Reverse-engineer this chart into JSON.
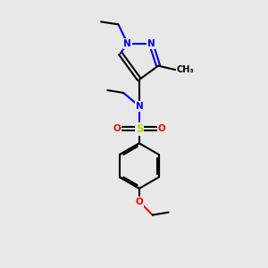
{
  "bg_color": "#e8e8e8",
  "bond_color": "#000000",
  "N_color": "#0000ff",
  "O_color": "#ff0000",
  "S_color": "#cccc00",
  "line_width": 1.5,
  "font_size": 7.5,
  "xlim": [
    0,
    10
  ],
  "ylim": [
    0,
    10
  ]
}
